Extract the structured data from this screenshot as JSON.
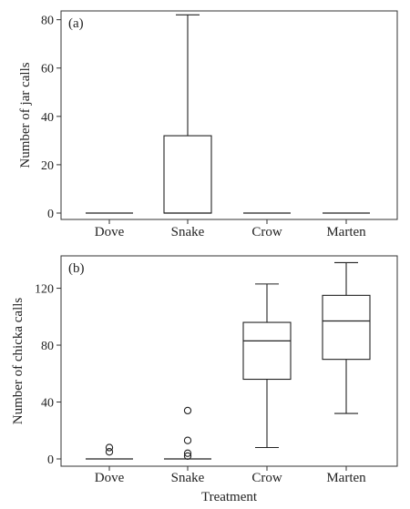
{
  "chart_data": [
    {
      "type": "box",
      "panel_label": "(a)",
      "ylabel": "Number of jar calls",
      "xlabel": "",
      "categories": [
        "Dove",
        "Snake",
        "Crow",
        "Marten"
      ],
      "ylim": [
        0,
        82
      ],
      "yticks": [
        0,
        20,
        40,
        60,
        80
      ],
      "boxes": [
        {
          "category": "Dove",
          "min": 0,
          "q1": 0,
          "median": 0,
          "q3": 0,
          "max": 0,
          "outliers": []
        },
        {
          "category": "Snake",
          "min": 0,
          "q1": 0,
          "median": 0,
          "q3": 32,
          "max": 82,
          "outliers": []
        },
        {
          "category": "Crow",
          "min": 0,
          "q1": 0,
          "median": 0,
          "q3": 0,
          "max": 0,
          "outliers": []
        },
        {
          "category": "Marten",
          "min": 0,
          "q1": 0,
          "median": 0,
          "q3": 0,
          "max": 0,
          "outliers": []
        }
      ]
    },
    {
      "type": "box",
      "panel_label": "(b)",
      "ylabel": "Number of chicka calls",
      "xlabel": "Treatment",
      "categories": [
        "Dove",
        "Snake",
        "Crow",
        "Marten"
      ],
      "ylim": [
        -3,
        140
      ],
      "yticks": [
        0,
        40,
        80,
        120
      ],
      "boxes": [
        {
          "category": "Dove",
          "min": 0,
          "q1": 0,
          "median": 0,
          "q3": 0,
          "max": 0,
          "outliers": [
            5,
            8
          ]
        },
        {
          "category": "Snake",
          "min": 0,
          "q1": 0,
          "median": 0,
          "q3": 0,
          "max": 0,
          "outliers": [
            2,
            4,
            13,
            34
          ]
        },
        {
          "category": "Crow",
          "min": 8,
          "q1": 56,
          "median": 83,
          "q3": 96,
          "max": 123,
          "outliers": []
        },
        {
          "category": "Marten",
          "min": 32,
          "q1": 70,
          "median": 97,
          "q3": 115,
          "max": 138,
          "outliers": []
        }
      ]
    }
  ]
}
